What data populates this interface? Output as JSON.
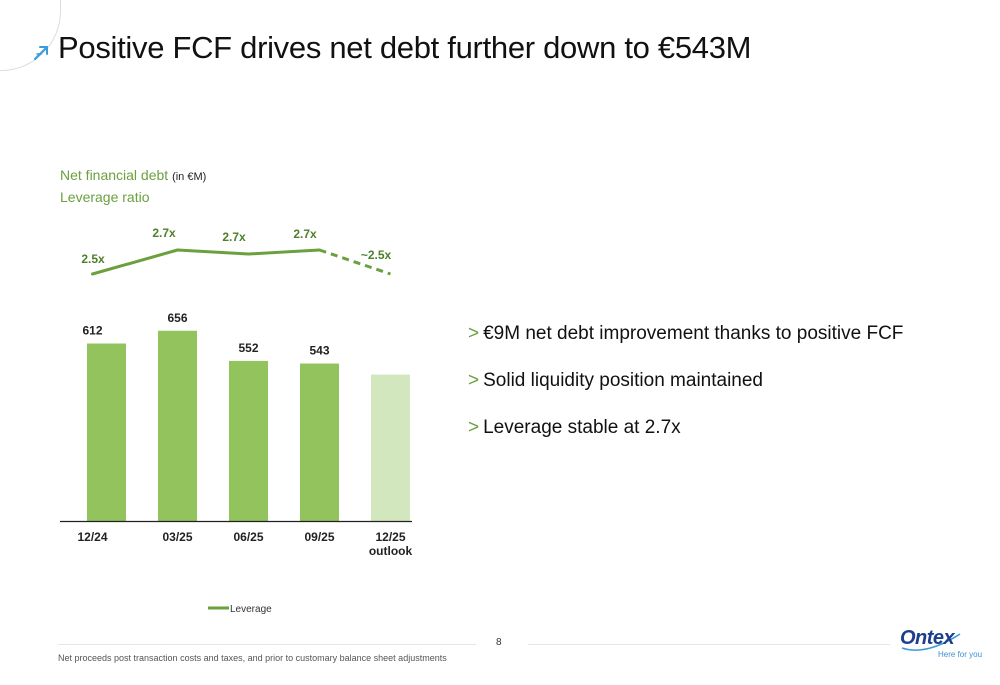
{
  "title": "Positive FCF drives net debt further down to €543M",
  "chart_header": {
    "line1": "Net financial debt",
    "unit": "(in €M)",
    "line2": "Leverage ratio"
  },
  "bullets": [
    {
      "marker": ">",
      "text": "€9M net debt improvement thanks to positive FCF"
    },
    {
      "marker": ">",
      "text": "Solid liquidity position maintained"
    },
    {
      "marker": ">",
      "text": "Leverage stable at 2.7x"
    }
  ],
  "footnote": "Net proceeds post transaction costs and taxes, and prior to customary balance sheet adjustments",
  "page_number": "8",
  "logo": {
    "name": "Ontex",
    "tagline": "Here for you"
  },
  "colors": {
    "bar": "#92c35c",
    "bar_outlook": "#d3e7bf",
    "line": "#6ba03f",
    "text_green": "#6ba03f",
    "brand_blue": "#1d3d8f"
  },
  "chart_data": {
    "type": "bar",
    "categories": [
      "12/24",
      "03/25",
      "06/25",
      "09/25",
      "12/25\noutlook"
    ],
    "series": [
      {
        "values": [
          612,
          656,
          552,
          543,
          505
        ],
        "value_labels": [
          "612",
          "656",
          "552",
          "543",
          ""
        ]
      },
      {
        "name": "Leverage",
        "type": "line",
        "values": [
          2.5,
          2.7,
          2.7,
          2.7,
          2.5
        ],
        "value_labels": [
          "2.5x",
          "2.7x",
          "2.7x",
          "2.7x",
          "~2.5x"
        ],
        "dashed_last_segment": true
      }
    ],
    "legend": {
      "position": "bottom-center",
      "entries": [
        "Leverage"
      ]
    },
    "grid": false
  }
}
